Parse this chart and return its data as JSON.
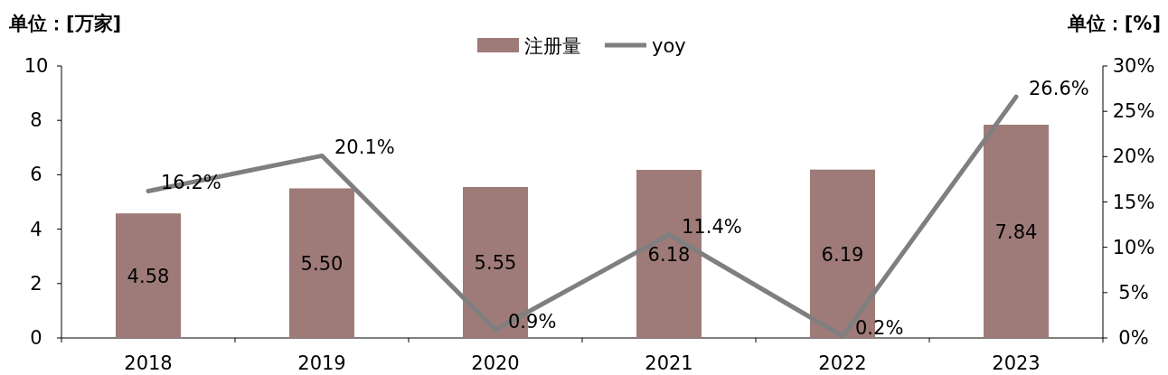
{
  "chart_data": {
    "type": "bar",
    "ylabel": "单位：[万家]",
    "y2label": "单位：[%]",
    "categories": [
      "2018",
      "2019",
      "2020",
      "2021",
      "2022",
      "2023"
    ],
    "series": [
      {
        "name": "注册量",
        "color": "#9e7b78",
        "values": [
          4.58,
          5.5,
          5.55,
          6.18,
          6.19,
          7.84
        ],
        "value_labels": [
          "4.58",
          "5.50",
          "5.55",
          "6.18",
          "6.19",
          "7.84"
        ]
      },
      {
        "name": "yoy",
        "type": "line",
        "axis": "y2",
        "color": "#7f7f7f",
        "values": [
          16.2,
          20.1,
          0.9,
          11.4,
          0.2,
          26.6
        ],
        "value_labels": [
          "16.2%",
          "20.1%",
          "0.9%",
          "11.4%",
          "0.2%",
          "26.6%"
        ]
      }
    ],
    "ylim": [
      0,
      10
    ],
    "yticks": [
      0,
      2,
      4,
      6,
      8,
      10
    ],
    "y2lim": [
      0,
      30
    ],
    "y2ticks": [
      {
        "value": 0,
        "label": "0%"
      },
      {
        "value": 5,
        "label": "5%"
      },
      {
        "value": 10,
        "label": "10%"
      },
      {
        "value": 15,
        "label": "15%"
      },
      {
        "value": 20,
        "label": "20%"
      },
      {
        "value": 25,
        "label": "25%"
      },
      {
        "value": 30,
        "label": "30%"
      }
    ],
    "legend": "top"
  }
}
